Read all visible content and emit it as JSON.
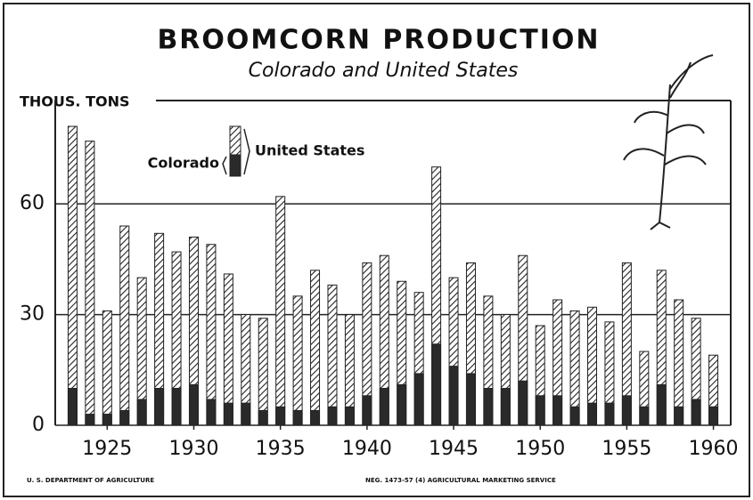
{
  "chart_data": {
    "type": "bar",
    "title": "BROOMCORN PRODUCTION",
    "subtitle": "Colorado and United States",
    "y_label": "THOUS. TONS",
    "footer_left": "U. S. DEPARTMENT OF AGRICULTURE",
    "footer_right": "NEG. 1473-57 (4)   AGRICULTURAL MARKETING SERVICE",
    "x": [
      1923,
      1924,
      1925,
      1926,
      1927,
      1928,
      1929,
      1930,
      1931,
      1932,
      1933,
      1934,
      1935,
      1936,
      1937,
      1938,
      1939,
      1940,
      1941,
      1942,
      1943,
      1944,
      1945,
      1946,
      1947,
      1948,
      1949,
      1950,
      1951,
      1952,
      1953,
      1954,
      1955,
      1956,
      1957,
      1958,
      1959,
      1960
    ],
    "series": [
      {
        "name": "United States",
        "color": "#222222",
        "values": [
          81,
          77,
          31,
          54,
          40,
          52,
          47,
          51,
          49,
          41,
          30,
          29,
          62,
          35,
          42,
          38,
          30,
          44,
          46,
          39,
          36,
          70,
          40,
          44,
          35,
          30,
          46,
          27,
          34,
          31,
          32,
          28,
          44,
          20,
          42,
          34,
          29,
          19
        ]
      },
      {
        "name": "Colorado",
        "color": "#2a2a2a",
        "values": [
          10,
          3,
          3,
          4,
          7,
          10,
          10,
          11,
          7,
          6,
          6,
          4,
          5,
          4,
          4,
          5,
          5,
          8,
          10,
          11,
          14,
          22,
          16,
          14,
          10,
          10,
          12,
          8,
          8,
          5,
          6,
          6,
          8,
          5,
          11,
          5,
          7,
          5
        ]
      }
    ],
    "xlim": [
      1922,
      1961
    ],
    "xticks": [
      1925,
      1930,
      1935,
      1940,
      1945,
      1950,
      1955,
      1960
    ],
    "ylim": [
      0,
      88
    ],
    "yticks": [
      0,
      30,
      60
    ],
    "grid": true
  }
}
